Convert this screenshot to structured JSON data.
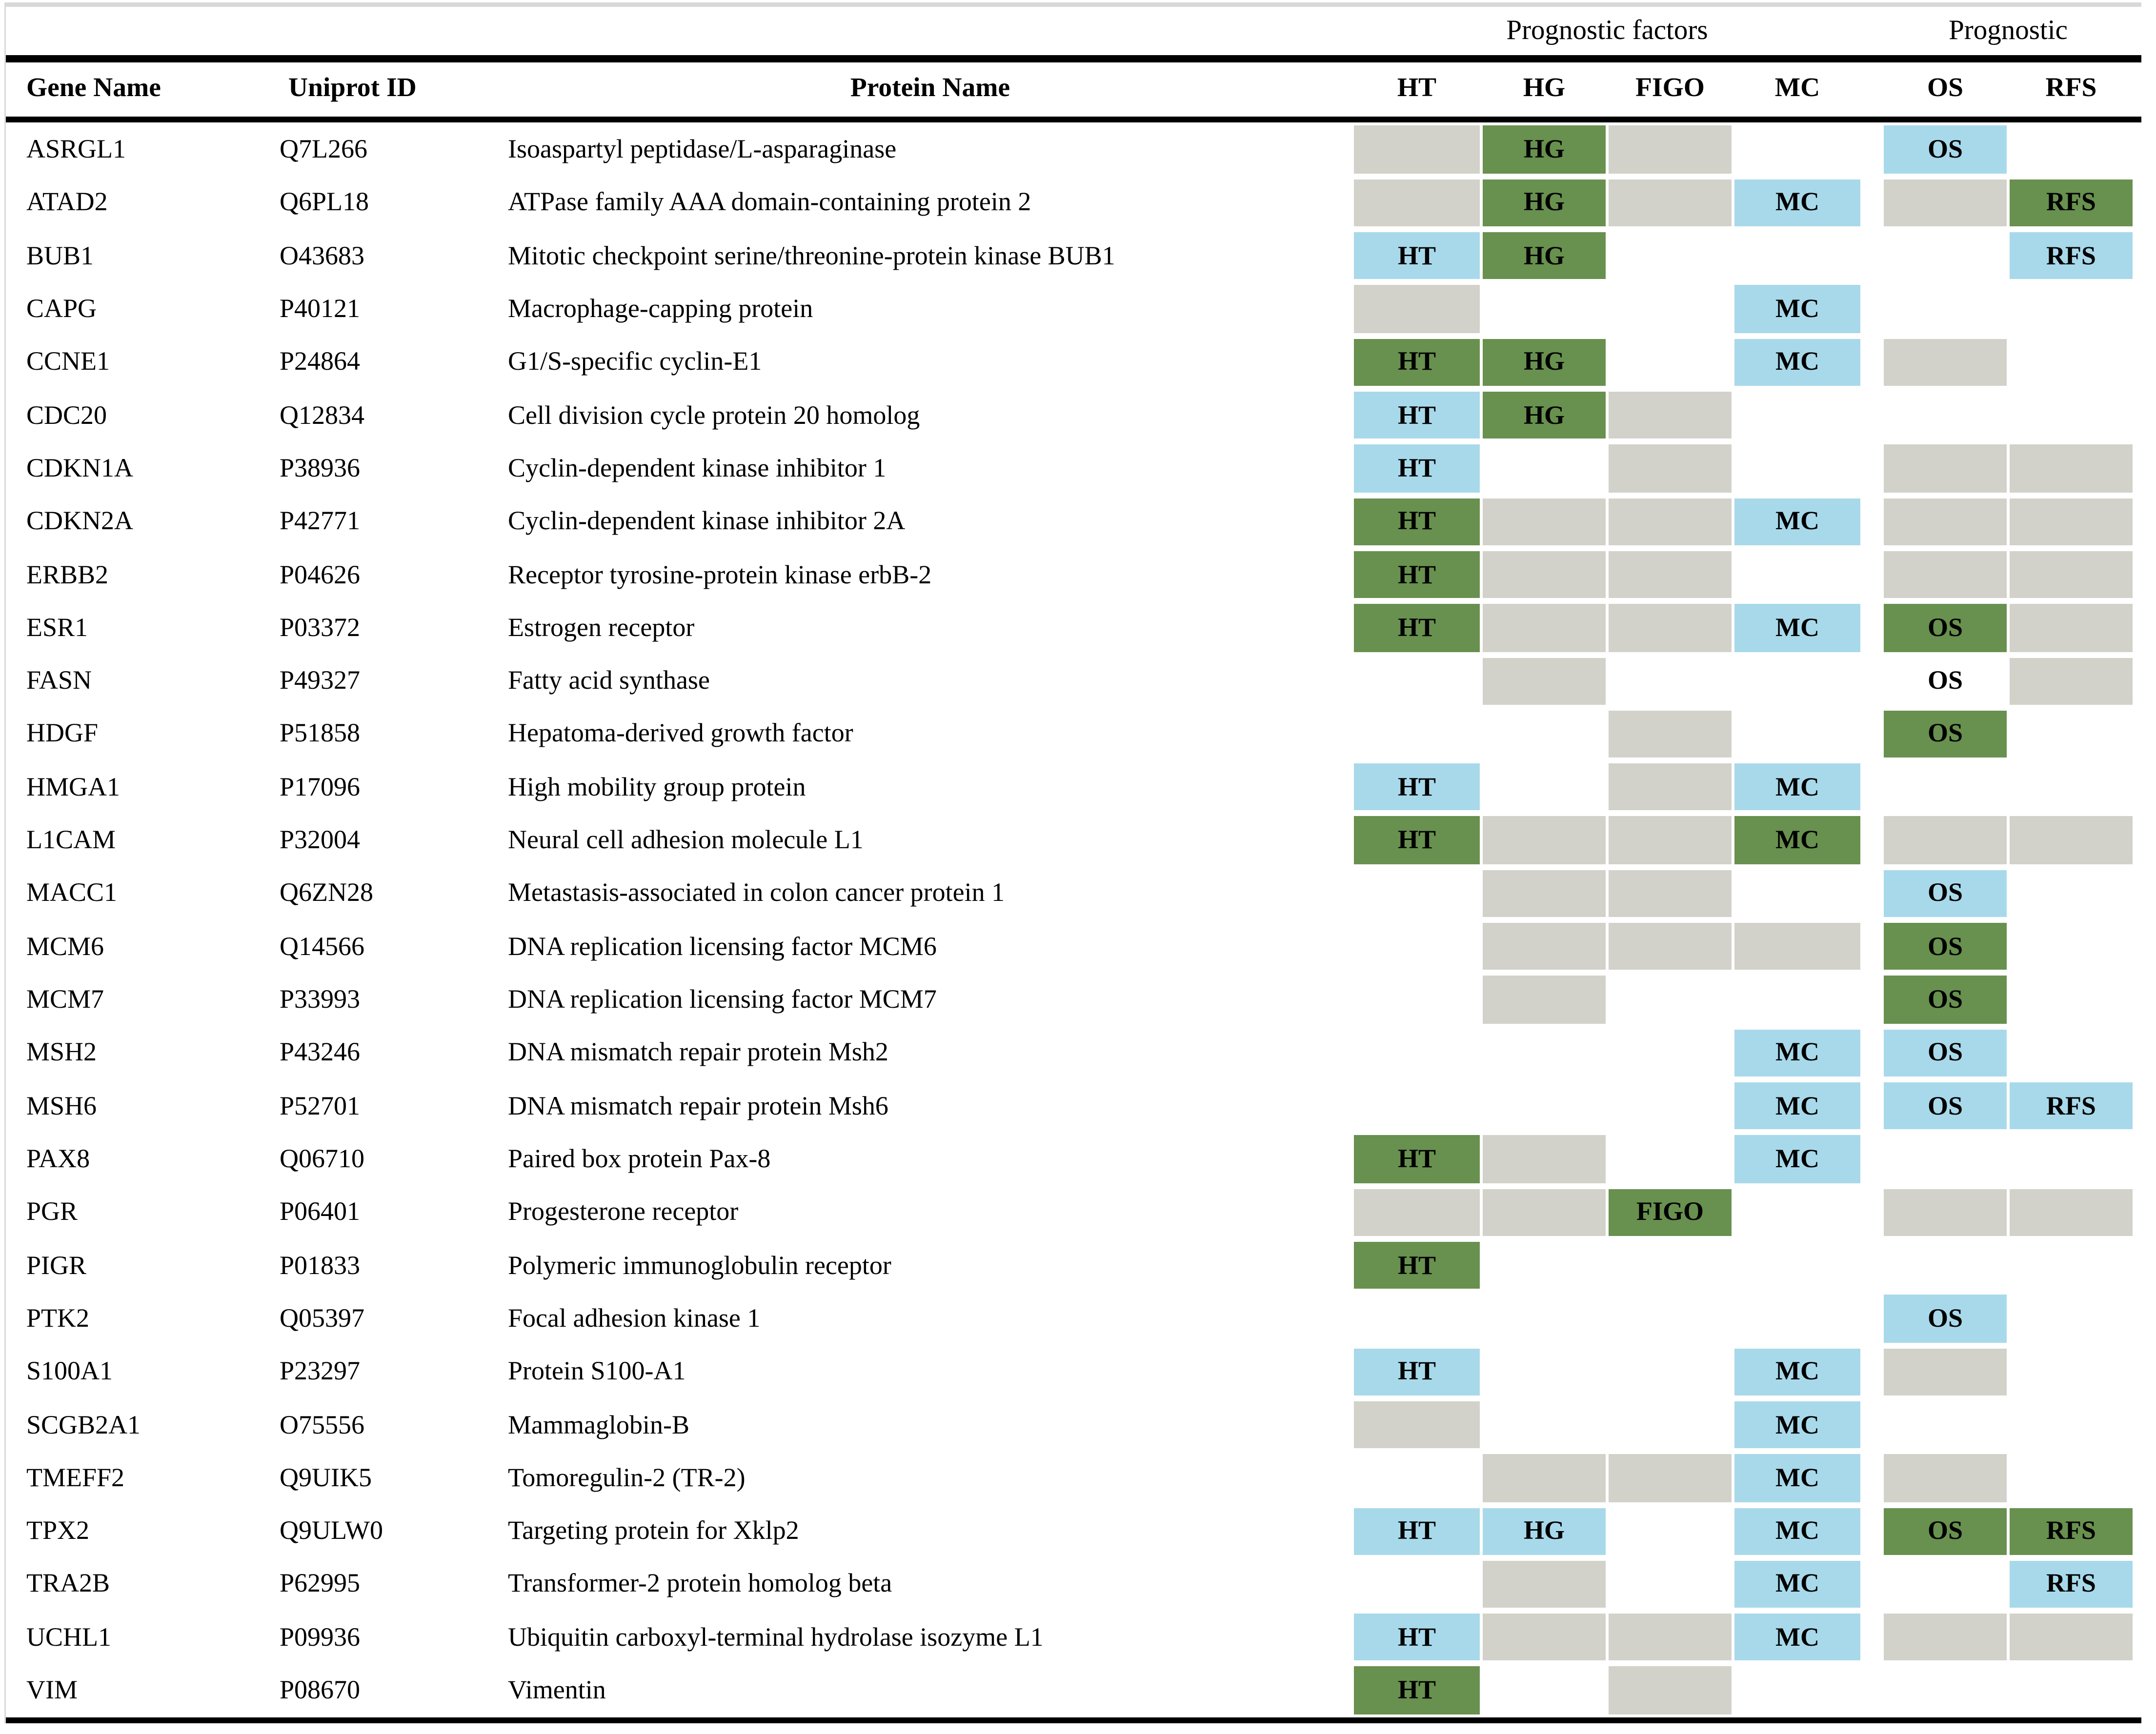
{
  "group_headers": [
    {
      "label": "Prognostic factors"
    },
    {
      "label": "Prognostic"
    }
  ],
  "columns": {
    "gene": "Gene Name",
    "uniprot": "Uniprot ID",
    "protein": "Protein Name",
    "factors": [
      "HT",
      "HG",
      "FIGO",
      "MC"
    ],
    "outcomes": [
      "OS",
      "RFS"
    ]
  },
  "colors": {
    "green": "#68904E",
    "blue": "#A8D9EA",
    "gray": "#D2D2CA",
    "none": "transparent",
    "rule_black": "#000000",
    "rule_gray": "#D8D8D8"
  },
  "rows": [
    {
      "gene": "ASRGL1",
      "uniprot": "Q7L266",
      "protein": "Isoaspartyl peptidase/L-asparaginase",
      "cells": [
        "gray",
        "HG:green",
        "gray",
        "",
        "OS:blue",
        ""
      ]
    },
    {
      "gene": "ATAD2",
      "uniprot": "Q6PL18",
      "protein": "ATPase family AAA domain-containing protein 2",
      "cells": [
        "gray",
        "HG:green",
        "gray",
        "MC:blue",
        "gray",
        "RFS:green"
      ]
    },
    {
      "gene": "BUB1",
      "uniprot": "O43683",
      "protein": "Mitotic checkpoint serine/threonine-protein kinase BUB1",
      "cells": [
        "HT:blue",
        "HG:green",
        "",
        "",
        "",
        "RFS:blue"
      ]
    },
    {
      "gene": "CAPG",
      "uniprot": "P40121",
      "protein": "Macrophage-capping protein",
      "cells": [
        "gray",
        "",
        "",
        "MC:blue",
        "",
        ""
      ]
    },
    {
      "gene": "CCNE1",
      "uniprot": "P24864",
      "protein": "G1/S-specific cyclin-E1",
      "cells": [
        "HT:green",
        "HG:green",
        "",
        "MC:blue",
        "gray",
        ""
      ]
    },
    {
      "gene": "CDC20",
      "uniprot": "Q12834",
      "protein": "Cell division cycle protein 20 homolog",
      "cells": [
        "HT:blue",
        "HG:green",
        "gray",
        "",
        "",
        ""
      ]
    },
    {
      "gene": "CDKN1A",
      "uniprot": "P38936",
      "protein": "Cyclin-dependent kinase inhibitor 1",
      "cells": [
        "HT:blue",
        "",
        "gray",
        "",
        "gray",
        "gray"
      ]
    },
    {
      "gene": "CDKN2A",
      "uniprot": "P42771",
      "protein": "Cyclin-dependent kinase inhibitor 2A",
      "cells": [
        "HT:green",
        "gray",
        "gray",
        "MC:blue",
        "gray",
        "gray"
      ]
    },
    {
      "gene": "ERBB2",
      "uniprot": "P04626",
      "protein": "Receptor tyrosine-protein kinase erbB-2",
      "cells": [
        "HT:green",
        "gray",
        "gray",
        "",
        "gray",
        "gray"
      ]
    },
    {
      "gene": "ESR1",
      "uniprot": "P03372",
      "protein": "Estrogen receptor",
      "cells": [
        "HT:green",
        "gray",
        "gray",
        "MC:blue",
        "OS:green",
        "gray"
      ]
    },
    {
      "gene": "FASN",
      "uniprot": "P49327",
      "protein": "Fatty acid synthase",
      "cells": [
        "",
        "gray",
        "",
        "",
        "OS:none",
        "gray"
      ]
    },
    {
      "gene": "HDGF",
      "uniprot": "P51858",
      "protein": "Hepatoma-derived growth factor",
      "cells": [
        "",
        "",
        "gray",
        "",
        "OS:green",
        ""
      ]
    },
    {
      "gene": "HMGA1",
      "uniprot": "P17096",
      "protein": "High mobility group protein",
      "cells": [
        "HT:blue",
        "",
        "gray",
        "MC:blue",
        "",
        ""
      ]
    },
    {
      "gene": "L1CAM",
      "uniprot": "P32004",
      "protein": "Neural cell adhesion molecule L1",
      "cells": [
        "HT:green",
        "gray",
        "gray",
        "MC:green",
        "gray",
        "gray"
      ]
    },
    {
      "gene": "MACC1",
      "uniprot": "Q6ZN28",
      "protein": "Metastasis-associated in colon cancer protein 1",
      "cells": [
        "",
        "gray",
        "gray",
        "",
        "OS:blue",
        ""
      ]
    },
    {
      "gene": "MCM6",
      "uniprot": "Q14566",
      "protein": "DNA replication licensing factor MCM6",
      "cells": [
        "",
        "gray",
        "gray",
        "gray",
        "OS:green",
        ""
      ]
    },
    {
      "gene": "MCM7",
      "uniprot": "P33993",
      "protein": "DNA replication licensing factor MCM7",
      "cells": [
        "",
        "gray",
        "",
        "",
        "OS:green",
        ""
      ]
    },
    {
      "gene": "MSH2",
      "uniprot": "P43246",
      "protein": "DNA mismatch repair protein Msh2",
      "cells": [
        "",
        "",
        "",
        "MC:blue",
        "OS:blue",
        ""
      ]
    },
    {
      "gene": "MSH6",
      "uniprot": "P52701",
      "protein": "DNA mismatch repair protein Msh6",
      "cells": [
        "",
        "",
        "",
        "MC:blue",
        "OS:blue",
        "RFS:blue"
      ]
    },
    {
      "gene": "PAX8",
      "uniprot": "Q06710",
      "protein": "Paired box protein Pax-8",
      "cells": [
        "HT:green",
        "gray",
        "",
        "MC:blue",
        "",
        ""
      ]
    },
    {
      "gene": "PGR",
      "uniprot": "P06401",
      "protein": "Progesterone receptor",
      "cells": [
        "gray",
        "gray",
        "FIGO:green",
        "",
        "gray",
        "gray"
      ]
    },
    {
      "gene": "PIGR",
      "uniprot": "P01833",
      "protein": "Polymeric immunoglobulin receptor",
      "cells": [
        "HT:green",
        "",
        "",
        "",
        "",
        ""
      ]
    },
    {
      "gene": "PTK2",
      "uniprot": "Q05397",
      "protein": "Focal adhesion kinase 1",
      "cells": [
        "",
        "",
        "",
        "",
        "OS:blue",
        ""
      ]
    },
    {
      "gene": "S100A1",
      "uniprot": "P23297",
      "protein": "Protein S100-A1",
      "cells": [
        "HT:blue",
        "",
        "",
        "MC:blue",
        "gray",
        ""
      ]
    },
    {
      "gene": "SCGB2A1",
      "uniprot": "O75556",
      "protein": "Mammaglobin-B",
      "cells": [
        "gray",
        "",
        "",
        "MC:blue",
        "",
        ""
      ]
    },
    {
      "gene": "TMEFF2",
      "uniprot": "Q9UIK5",
      "protein": "Tomoregulin-2 (TR-2)",
      "cells": [
        "",
        "gray",
        "gray",
        "MC:blue",
        "gray",
        ""
      ]
    },
    {
      "gene": "TPX2",
      "uniprot": "Q9ULW0",
      "protein": "Targeting protein for Xklp2",
      "cells": [
        "HT:blue",
        "HG:blue",
        "",
        "MC:blue",
        "OS:green",
        "RFS:green"
      ]
    },
    {
      "gene": "TRA2B",
      "uniprot": "P62995",
      "protein": "Transformer-2 protein homolog beta",
      "cells": [
        "",
        "gray",
        "",
        "MC:blue",
        "",
        "RFS:blue"
      ]
    },
    {
      "gene": "UCHL1",
      "uniprot": "P09936",
      "protein": "Ubiquitin carboxyl-terminal hydrolase isozyme L1",
      "cells": [
        "HT:blue",
        "gray",
        "gray",
        "MC:blue",
        "gray",
        "gray"
      ]
    },
    {
      "gene": "VIM",
      "uniprot": "P08670",
      "protein": "Vimentin",
      "cells": [
        "HT:green",
        "",
        "gray",
        "",
        "",
        ""
      ]
    }
  ]
}
